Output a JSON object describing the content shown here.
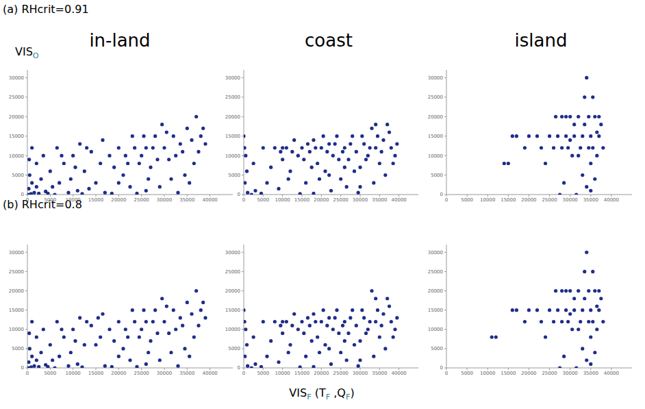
{
  "figure": {
    "row_labels": [
      "(a) RHcrit=0.91",
      "(b) RHcrit=0.8"
    ],
    "column_titles": [
      "in-land",
      "coast",
      "island"
    ],
    "y_label": [
      {
        "text": "VIS"
      },
      {
        "sub": "O"
      }
    ],
    "x_label": [
      {
        "text": "VIS"
      },
      {
        "sub": "F"
      },
      {
        "text": " (T"
      },
      {
        "sub": "F"
      },
      {
        "text": " ,Q"
      },
      {
        "sub": "F"
      },
      {
        "text": ")"
      }
    ]
  },
  "chart_data": [
    {
      "type": "scatter",
      "color": "#1f2d8a",
      "marker": "circle",
      "xlim": [
        0,
        45000
      ],
      "xticks": [
        0,
        5000,
        10000,
        15000,
        20000,
        25000,
        30000,
        35000,
        40000
      ],
      "ylim": [
        0,
        32000
      ],
      "yticks": [
        0,
        5000,
        10000,
        15000,
        20000,
        25000,
        30000
      ],
      "x": [
        200,
        800,
        1500,
        300,
        2500,
        4000,
        6000,
        1000,
        2000,
        500,
        3000,
        5000,
        7000,
        9000,
        11000,
        12000,
        8000,
        10000,
        13000,
        15000,
        16000,
        18000,
        17000,
        20000,
        21000,
        22000,
        23000,
        24000,
        25000,
        26000,
        27000,
        28000,
        29000,
        30000,
        31000,
        32000,
        33000,
        34000,
        35000,
        36000,
        37000,
        38000,
        39000,
        36500,
        34500,
        33500,
        31500,
        30500,
        28500,
        27500,
        26500,
        25500,
        24500,
        23500,
        22500,
        21500,
        19000,
        14000,
        12500,
        11500,
        9500,
        7500,
        6500,
        3500,
        2000,
        1000,
        400,
        5500,
        4500,
        13500,
        18500,
        29500,
        37500,
        38500,
        35500,
        32500,
        26000,
        20000,
        16500,
        10500
      ],
      "values": [
        0,
        200,
        500,
        1500,
        300,
        800,
        0,
        3000,
        2000,
        5000,
        4000,
        6000,
        3000,
        500,
        1000,
        200,
        8000,
        10000,
        12000,
        3000,
        8000,
        10000,
        500,
        12000,
        5000,
        8000,
        15000,
        300,
        10000,
        12000,
        7000,
        15000,
        2000,
        12000,
        9000,
        15000,
        500,
        11000,
        17000,
        14000,
        20000,
        15000,
        13000,
        8000,
        5000,
        13000,
        4000,
        16000,
        9000,
        12000,
        4000,
        15000,
        8000,
        12000,
        2000,
        10000,
        7000,
        11000,
        6000,
        13000,
        4000,
        10000,
        12000,
        10000,
        8000,
        12000,
        9000,
        2000,
        300,
        1500,
        300,
        18000,
        11000,
        17000,
        3000,
        10000,
        1000,
        3000,
        14000,
        7000
      ]
    },
    {
      "type": "scatter",
      "color": "#1f2d8a",
      "marker": "circle",
      "xlim": [
        0,
        45000
      ],
      "xticks": [
        0,
        5000,
        10000,
        15000,
        20000,
        25000,
        30000,
        35000,
        40000
      ],
      "ylim": [
        0,
        32000
      ],
      "yticks": [
        0,
        5000,
        10000,
        15000,
        20000,
        25000,
        30000
      ],
      "x": [
        0,
        200,
        500,
        300,
        1000,
        2000,
        3000,
        4500,
        800,
        2500,
        5000,
        6000,
        7000,
        8000,
        9000,
        10000,
        11000,
        12000,
        13000,
        14000,
        15000,
        16000,
        17000,
        18000,
        19000,
        20000,
        21000,
        22000,
        23000,
        24000,
        25000,
        26000,
        27000,
        28000,
        29000,
        30000,
        31000,
        32000,
        33000,
        34000,
        35000,
        36000,
        37000,
        38000,
        39000,
        37500,
        36500,
        35500,
        34500,
        33500,
        32500,
        31500,
        30500,
        29500,
        28500,
        27500,
        26500,
        25500,
        24500,
        23500,
        22500,
        21500,
        20500,
        19500,
        18500,
        17500,
        16500,
        15500,
        14500,
        12500,
        11500,
        9500,
        38500,
        39500,
        34000,
        30000,
        26000,
        22000,
        18000,
        10000
      ],
      "values": [
        15000,
        12000,
        10000,
        3000,
        500,
        0,
        1000,
        300,
        6000,
        8000,
        12000,
        3000,
        7000,
        12000,
        1500,
        9000,
        12000,
        6000,
        14000,
        10000,
        12000,
        3000,
        11000,
        14000,
        8000,
        12000,
        6000,
        13000,
        10000,
        15000,
        4000,
        12000,
        9000,
        15000,
        11000,
        7000,
        13000,
        10000,
        17000,
        12000,
        8000,
        14000,
        18000,
        12000,
        10000,
        16000,
        5000,
        11000,
        15000,
        3000,
        12000,
        9000,
        15000,
        500,
        6000,
        13000,
        2000,
        11000,
        9000,
        13000,
        1000,
        11000,
        15000,
        4000,
        12000,
        7000,
        13000,
        9000,
        200,
        11000,
        4000,
        11000,
        8000,
        13000,
        18000,
        2000,
        7000,
        5000,
        300,
        12000
      ]
    },
    {
      "type": "scatter",
      "color": "#1f2d8a",
      "marker": "circle",
      "xlim": [
        0,
        45000
      ],
      "xticks": [
        0,
        5000,
        10000,
        15000,
        20000,
        25000,
        30000,
        35000,
        40000
      ],
      "ylim": [
        0,
        32000
      ],
      "yticks": [
        0,
        5000,
        10000,
        15000,
        20000,
        25000,
        30000
      ],
      "x": [
        14000,
        15000,
        16000,
        17000,
        19000,
        20000,
        22000,
        23000,
        24000,
        25000,
        26000,
        26500,
        27000,
        27500,
        28000,
        28500,
        29000,
        29500,
        30000,
        30500,
        31000,
        31500,
        32000,
        32500,
        33000,
        33500,
        34000,
        34500,
        35000,
        35500,
        36000,
        36500,
        37000,
        37500,
        38000,
        33000,
        34000,
        35000,
        36000,
        32000,
        31000,
        30000,
        29000,
        28000,
        33500,
        34500,
        35500,
        36500,
        37000,
        35000
      ],
      "values": [
        8000,
        8000,
        15000,
        15000,
        12000,
        15000,
        15000,
        12000,
        8000,
        15000,
        12000,
        20000,
        15000,
        0,
        20000,
        3000,
        15000,
        12000,
        20000,
        10000,
        15000,
        0,
        20000,
        12000,
        15000,
        25000,
        30000,
        20000,
        15000,
        12000,
        20000,
        10000,
        15000,
        18000,
        12000,
        5000,
        2000,
        8000,
        4000,
        10000,
        18000,
        14000,
        20000,
        12000,
        18000,
        12000,
        25000,
        16000,
        20000,
        1000
      ]
    },
    {
      "type": "scatter",
      "color": "#1f2d8a",
      "marker": "circle",
      "xlim": [
        0,
        45000
      ],
      "xticks": [
        0,
        5000,
        10000,
        15000,
        20000,
        25000,
        30000,
        35000,
        40000
      ],
      "ylim": [
        0,
        32000
      ],
      "yticks": [
        0,
        5000,
        10000,
        15000,
        20000,
        25000,
        30000
      ],
      "x": [
        200,
        800,
        1500,
        300,
        2500,
        4000,
        6000,
        1000,
        2000,
        500,
        3000,
        5000,
        7000,
        9000,
        11000,
        12000,
        8000,
        10000,
        13000,
        15000,
        16000,
        18000,
        17000,
        20000,
        21000,
        22000,
        23000,
        24000,
        25000,
        26000,
        27000,
        28000,
        29000,
        30000,
        31000,
        32000,
        33000,
        34000,
        35000,
        36000,
        37000,
        38000,
        39000,
        36500,
        34500,
        33500,
        31500,
        30500,
        28500,
        27500,
        26500,
        25500,
        24500,
        23500,
        22500,
        21500,
        19000,
        14000,
        12500,
        11500,
        9500,
        7500,
        6500,
        3500,
        2000,
        1000,
        400,
        5500,
        4500,
        15500,
        18500,
        29500,
        37500,
        38500,
        35500,
        32500,
        26000,
        20000,
        16500,
        10500
      ],
      "values": [
        0,
        200,
        500,
        1500,
        300,
        800,
        0,
        3000,
        2000,
        5000,
        4000,
        6000,
        3000,
        500,
        1000,
        200,
        8000,
        10000,
        12000,
        6000,
        8000,
        10000,
        500,
        12000,
        5000,
        8000,
        15000,
        300,
        10000,
        12000,
        7000,
        15000,
        2000,
        12000,
        9000,
        15000,
        500,
        11000,
        17000,
        14000,
        20000,
        15000,
        13000,
        8000,
        5000,
        13000,
        4000,
        16000,
        9000,
        12000,
        4000,
        15000,
        8000,
        12000,
        2000,
        10000,
        7000,
        11000,
        6000,
        13000,
        4000,
        10000,
        12000,
        10000,
        8000,
        12000,
        9000,
        2000,
        300,
        13000,
        300,
        18000,
        11000,
        17000,
        3000,
        10000,
        1000,
        3000,
        14000,
        7000
      ]
    },
    {
      "type": "scatter",
      "color": "#1f2d8a",
      "marker": "circle",
      "xlim": [
        0,
        45000
      ],
      "xticks": [
        0,
        5000,
        10000,
        15000,
        20000,
        25000,
        30000,
        35000,
        40000
      ],
      "ylim": [
        0,
        32000
      ],
      "yticks": [
        0,
        5000,
        10000,
        15000,
        20000,
        25000,
        30000
      ],
      "x": [
        0,
        200,
        500,
        300,
        1000,
        2000,
        3000,
        4500,
        800,
        2500,
        5000,
        6000,
        7000,
        8000,
        9000,
        10000,
        11000,
        12000,
        13000,
        14000,
        15000,
        16000,
        17000,
        18000,
        19000,
        20000,
        21000,
        22000,
        23000,
        24000,
        25000,
        26000,
        27000,
        28000,
        29000,
        30000,
        31000,
        32000,
        33000,
        34000,
        35000,
        36000,
        37000,
        38000,
        39000,
        37500,
        36500,
        35500,
        34500,
        33500,
        32500,
        31500,
        30500,
        29500,
        28500,
        27500,
        26500,
        25500,
        24500,
        23500,
        22500,
        21500,
        20500,
        19500,
        18500,
        17500,
        16500,
        15500,
        14500,
        12500,
        11500,
        9500,
        38500,
        39500,
        34000,
        30000,
        26000,
        22000,
        18000,
        10000
      ],
      "values": [
        15000,
        12000,
        10000,
        3000,
        500,
        0,
        1000,
        300,
        6000,
        8000,
        12000,
        3000,
        7000,
        12000,
        1500,
        9000,
        12000,
        6000,
        14000,
        10000,
        12000,
        3000,
        11000,
        14000,
        8000,
        12000,
        6000,
        13000,
        10000,
        15000,
        4000,
        12000,
        9000,
        15000,
        11000,
        7000,
        13000,
        10000,
        20000,
        12000,
        8000,
        14000,
        18000,
        12000,
        10000,
        16000,
        5000,
        11000,
        15000,
        3000,
        12000,
        9000,
        15000,
        500,
        6000,
        13000,
        2000,
        11000,
        9000,
        13000,
        1000,
        11000,
        15000,
        4000,
        12000,
        7000,
        13000,
        9000,
        200,
        11000,
        4000,
        11000,
        8000,
        13000,
        18000,
        2000,
        7000,
        5000,
        300,
        12000
      ]
    },
    {
      "type": "scatter",
      "color": "#1f2d8a",
      "marker": "circle",
      "xlim": [
        0,
        45000
      ],
      "xticks": [
        0,
        5000,
        10000,
        15000,
        20000,
        25000,
        30000,
        35000,
        40000
      ],
      "ylim": [
        0,
        32000
      ],
      "yticks": [
        0,
        5000,
        10000,
        15000,
        20000,
        25000,
        30000
      ],
      "x": [
        11000,
        12000,
        16000,
        17000,
        19000,
        20000,
        22000,
        23000,
        24000,
        25000,
        26000,
        26500,
        27000,
        27500,
        28000,
        28500,
        29000,
        29500,
        30000,
        30500,
        31000,
        31500,
        32000,
        32500,
        33000,
        33500,
        34000,
        34500,
        35000,
        35500,
        36000,
        36500,
        37000,
        37500,
        38000,
        33000,
        34000,
        35000,
        36000,
        32000,
        31000,
        30000,
        29000,
        28000,
        33500,
        34500,
        35500,
        36500,
        37000,
        35000
      ],
      "values": [
        8000,
        8000,
        15000,
        15000,
        12000,
        15000,
        15000,
        12000,
        8000,
        15000,
        12000,
        20000,
        15000,
        0,
        20000,
        3000,
        15000,
        12000,
        20000,
        10000,
        15000,
        0,
        20000,
        12000,
        15000,
        25000,
        30000,
        20000,
        15000,
        12000,
        20000,
        10000,
        15000,
        18000,
        12000,
        5000,
        2000,
        8000,
        4000,
        10000,
        18000,
        14000,
        20000,
        12000,
        18000,
        12000,
        25000,
        16000,
        20000,
        1000
      ]
    }
  ]
}
